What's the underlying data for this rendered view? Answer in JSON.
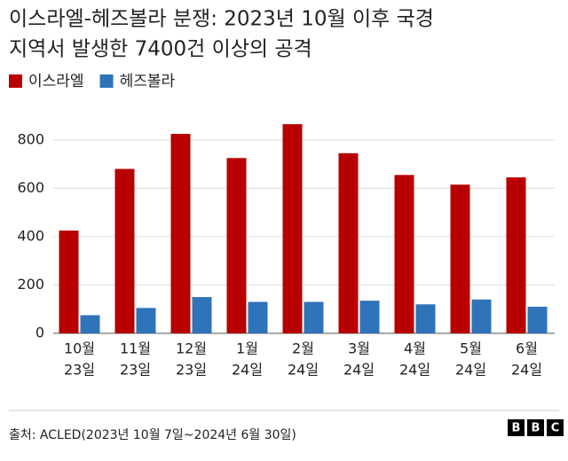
{
  "chart_data": {
    "type": "bar",
    "title": [
      "이스라엘-헤즈볼라 분쟁: 2023년 10월 이후 국경",
      "지역서 발생한 7400건 이상의 공격"
    ],
    "categories": [
      [
        "10월",
        "23일"
      ],
      [
        "11월",
        "23일"
      ],
      [
        "12월",
        "23일"
      ],
      [
        "1월",
        "24일"
      ],
      [
        "2월",
        "24일"
      ],
      [
        "3월",
        "24일"
      ],
      [
        "4월",
        "24일"
      ],
      [
        "5월",
        "24일"
      ],
      [
        "6월",
        "24일"
      ]
    ],
    "series": [
      {
        "name": "이스라엘",
        "color": "#b80000",
        "values": [
          425,
          680,
          825,
          725,
          865,
          745,
          655,
          615,
          645
        ]
      },
      {
        "name": "헤즈볼라",
        "color": "#2f73b8",
        "values": [
          75,
          105,
          150,
          130,
          130,
          135,
          120,
          140,
          110
        ]
      }
    ],
    "ylim": [
      0,
      880
    ],
    "yticks": [
      0,
      200,
      400,
      600,
      800
    ],
    "grid": true,
    "legend": "top-left",
    "source": "출처: ACLED(2023년 10월 7일~2024년 6월 30일)",
    "logo": [
      "B",
      "B",
      "C"
    ]
  }
}
